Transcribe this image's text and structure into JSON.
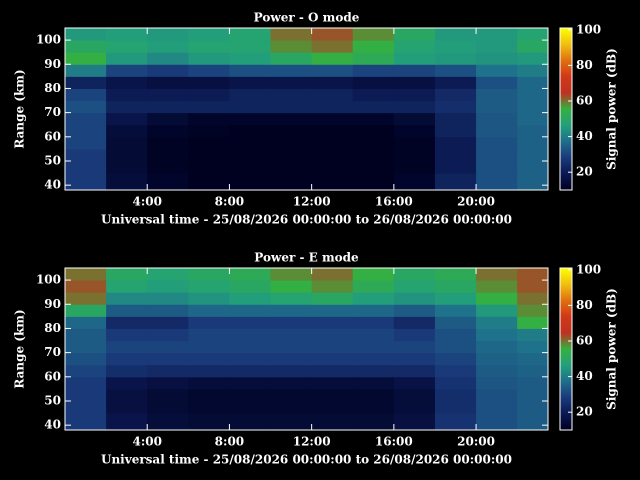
{
  "chart_data": [
    {
      "type": "heatmap",
      "title": "Power - O mode",
      "x_label": "Universal time - 25/08/2026 00:00:00 to 26/08/2026 00:00:00",
      "y_label": "Range (km)",
      "colorbar_label": "Signal power (dB)",
      "xlim": [
        0,
        23.5
      ],
      "xticks": [
        {
          "value": 4,
          "label": "4:00"
        },
        {
          "value": 8,
          "label": "8:00"
        },
        {
          "value": 12,
          "label": "12:00"
        },
        {
          "value": 16,
          "label": "16:00"
        },
        {
          "value": 20,
          "label": "20:00"
        }
      ],
      "ylim": [
        38,
        105
      ],
      "yticks": [
        40,
        50,
        60,
        70,
        80,
        90,
        100
      ],
      "x_bins": [
        0,
        2,
        4,
        6,
        8,
        10,
        12,
        14,
        16,
        18,
        20,
        22,
        23.5
      ],
      "y_bins": [
        38,
        45,
        50,
        55,
        60,
        65,
        70,
        75,
        80,
        85,
        90,
        95,
        100,
        105
      ],
      "values": [
        [
          28,
          15,
          12,
          10,
          10,
          10,
          10,
          10,
          12,
          22,
          32,
          35
        ],
        [
          28,
          14,
          11,
          10,
          10,
          10,
          10,
          10,
          11,
          20,
          32,
          35
        ],
        [
          28,
          14,
          11,
          10,
          10,
          10,
          10,
          10,
          11,
          20,
          32,
          35
        ],
        [
          30,
          14,
          11,
          10,
          10,
          10,
          10,
          10,
          11,
          20,
          32,
          35
        ],
        [
          30,
          15,
          12,
          11,
          10,
          10,
          10,
          10,
          12,
          22,
          33,
          35
        ],
        [
          30,
          18,
          14,
          12,
          12,
          12,
          12,
          12,
          14,
          22,
          33,
          36
        ],
        [
          32,
          22,
          22,
          22,
          22,
          22,
          22,
          22,
          22,
          25,
          34,
          36
        ],
        [
          30,
          20,
          20,
          20,
          22,
          22,
          22,
          20,
          20,
          24,
          34,
          36
        ],
        [
          22,
          18,
          16,
          16,
          18,
          18,
          18,
          16,
          16,
          20,
          32,
          36
        ],
        [
          40,
          30,
          28,
          30,
          32,
          32,
          32,
          30,
          30,
          32,
          38,
          40
        ],
        [
          55,
          45,
          42,
          45,
          46,
          50,
          55,
          52,
          46,
          45,
          44,
          45
        ],
        [
          50,
          48,
          46,
          48,
          48,
          58,
          60,
          55,
          48,
          46,
          45,
          50
        ],
        [
          45,
          46,
          45,
          46,
          48,
          60,
          62,
          58,
          50,
          45,
          45,
          48
        ]
      ],
      "zlim": [
        10,
        101
      ],
      "zticks": [
        20,
        40,
        60,
        80,
        100
      ],
      "colormap": [
        "#000020",
        "#0a1850",
        "#1a3a7a",
        "#1f6e8c",
        "#22a07a",
        "#35b040",
        "#c03020",
        "#d03818",
        "#e07010",
        "#f0c010",
        "#ffff00"
      ]
    },
    {
      "type": "heatmap",
      "title": "Power - E mode",
      "x_label": "Universal time - 25/08/2026 00:00:00 to 26/08/2026 00:00:00",
      "y_label": "Range (km)",
      "colorbar_label": "Signal power (dB)",
      "xlim": [
        0,
        23.5
      ],
      "xticks": [
        {
          "value": 4,
          "label": "4:00"
        },
        {
          "value": 8,
          "label": "8:00"
        },
        {
          "value": 12,
          "label": "12:00"
        },
        {
          "value": 16,
          "label": "16:00"
        },
        {
          "value": 20,
          "label": "20:00"
        }
      ],
      "ylim": [
        38,
        105
      ],
      "yticks": [
        40,
        50,
        60,
        70,
        80,
        90,
        100
      ],
      "x_bins": [
        0,
        2,
        4,
        6,
        8,
        10,
        12,
        14,
        16,
        18,
        20,
        22,
        23.5
      ],
      "y_bins": [
        38,
        45,
        50,
        55,
        60,
        65,
        70,
        75,
        80,
        85,
        90,
        95,
        100,
        105
      ],
      "values": [
        [
          28,
          18,
          15,
          14,
          14,
          14,
          14,
          14,
          16,
          26,
          32,
          34
        ],
        [
          28,
          16,
          14,
          13,
          13,
          13,
          13,
          13,
          15,
          25,
          32,
          34
        ],
        [
          28,
          16,
          14,
          13,
          13,
          13,
          13,
          13,
          15,
          25,
          32,
          34
        ],
        [
          28,
          18,
          16,
          15,
          15,
          15,
          15,
          15,
          17,
          26,
          33,
          34
        ],
        [
          30,
          25,
          24,
          24,
          24,
          24,
          24,
          24,
          24,
          28,
          34,
          35
        ],
        [
          32,
          28,
          28,
          28,
          28,
          28,
          28,
          28,
          28,
          30,
          35,
          36
        ],
        [
          34,
          30,
          30,
          30,
          30,
          30,
          30,
          30,
          30,
          32,
          36,
          38
        ],
        [
          34,
          28,
          28,
          30,
          30,
          30,
          30,
          30,
          28,
          32,
          38,
          40
        ],
        [
          36,
          24,
          24,
          28,
          28,
          28,
          28,
          28,
          24,
          34,
          40,
          55
        ],
        [
          50,
          34,
          34,
          36,
          36,
          36,
          36,
          36,
          34,
          38,
          45,
          58
        ],
        [
          60,
          42,
          42,
          44,
          46,
          48,
          50,
          46,
          44,
          46,
          55,
          60
        ],
        [
          62,
          48,
          46,
          48,
          50,
          55,
          58,
          52,
          48,
          50,
          58,
          62
        ],
        [
          60,
          50,
          48,
          50,
          52,
          58,
          60,
          55,
          50,
          52,
          60,
          62
        ]
      ],
      "zlim": [
        10,
        101
      ],
      "zticks": [
        20,
        40,
        60,
        80,
        100
      ],
      "colormap": [
        "#000020",
        "#0a1850",
        "#1a3a7a",
        "#1f6e8c",
        "#22a07a",
        "#35b040",
        "#c03020",
        "#d03818",
        "#e07010",
        "#f0c010",
        "#ffff00"
      ]
    }
  ]
}
